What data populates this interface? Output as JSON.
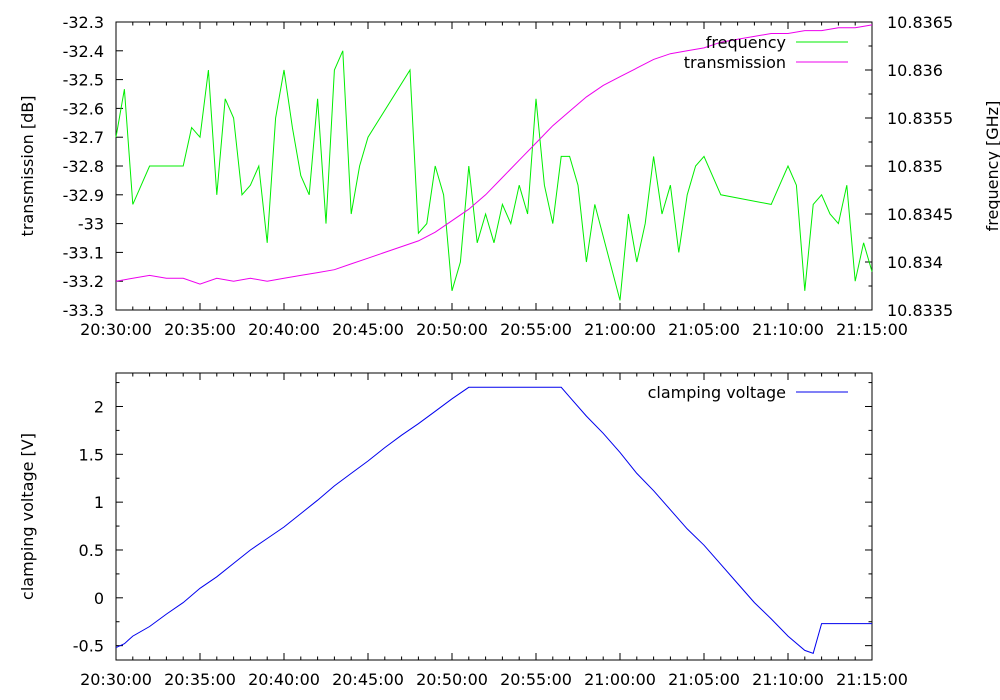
{
  "colors": {
    "frequency": "#00ee00",
    "transmission": "#ee00ee",
    "clamping_voltage": "#0000ee",
    "axes": "#000000",
    "background": "#ffffff"
  },
  "chart_data": [
    {
      "type": "line",
      "xlabel": "",
      "ylabel": "transmission [dB]",
      "y2label": "frequency [GHz]",
      "x_ticks": [
        "20:30:00",
        "20:35:00",
        "20:40:00",
        "20:45:00",
        "20:50:00",
        "20:55:00",
        "21:00:00",
        "21:05:00",
        "21:10:00",
        "21:15:00"
      ],
      "xlim": [
        "20:30:00",
        "21:15:00"
      ],
      "ylim": [
        -33.3,
        -32.3
      ],
      "y_ticks": [
        "-32.3",
        "-32.4",
        "-32.5",
        "-32.6",
        "-32.7",
        "-32.8",
        "-32.9",
        "-33",
        "-33.1",
        "-33.2",
        "-33.3"
      ],
      "y2lim": [
        10.8335,
        10.8365
      ],
      "y2_ticks": [
        "10.8365",
        "10.836",
        "10.8355",
        "10.835",
        "10.8345",
        "10.834",
        "10.8335"
      ],
      "grid": false,
      "legend_position": "top-right",
      "series": [
        {
          "name": "frequency",
          "axis": "y2",
          "x": [
            "20:30:00",
            "20:30:30",
            "20:31:00",
            "20:32:00",
            "20:33:00",
            "20:33:30",
            "20:34:00",
            "20:34:30",
            "20:35:00",
            "20:35:30",
            "20:36:00",
            "20:36:30",
            "20:37:00",
            "20:37:30",
            "20:38:00",
            "20:38:30",
            "20:39:00",
            "20:39:30",
            "20:40:00",
            "20:40:30",
            "20:41:00",
            "20:41:30",
            "20:42:00",
            "20:42:30",
            "20:43:00",
            "20:43:30",
            "20:44:00",
            "20:44:30",
            "20:45:00",
            "20:47:30",
            "20:48:00",
            "20:48:30",
            "20:49:00",
            "20:49:30",
            "20:50:00",
            "20:50:30",
            "20:51:00",
            "20:51:30",
            "20:52:00",
            "20:52:30",
            "20:53:00",
            "20:53:30",
            "20:54:00",
            "20:54:30",
            "20:55:00",
            "20:55:30",
            "20:56:00",
            "20:56:30",
            "20:57:00",
            "20:57:30",
            "20:58:00",
            "20:58:30",
            "21:00:00",
            "21:00:30",
            "21:01:00",
            "21:01:30",
            "21:02:00",
            "21:02:30",
            "21:03:00",
            "21:03:30",
            "21:04:00",
            "21:04:30",
            "21:05:00",
            "21:06:00",
            "21:09:00",
            "21:09:30",
            "21:10:00",
            "21:10:30",
            "21:11:00",
            "21:11:30",
            "21:12:00",
            "21:12:30",
            "21:13:00",
            "21:13:30",
            "21:14:00",
            "21:14:30",
            "21:15:00"
          ],
          "values": [
            10.8353,
            10.8358,
            10.8346,
            10.835,
            10.835,
            10.835,
            10.835,
            10.8354,
            10.8353,
            10.836,
            10.8347,
            10.8357,
            10.8355,
            10.8347,
            10.8348,
            10.835,
            10.8342,
            10.8355,
            10.836,
            10.8354,
            10.8349,
            10.8347,
            10.8357,
            10.8344,
            10.836,
            10.8362,
            10.8345,
            10.835,
            10.8353,
            10.836,
            10.8343,
            10.8344,
            10.835,
            10.8347,
            10.8337,
            10.834,
            10.835,
            10.8342,
            10.8345,
            10.8342,
            10.8346,
            10.8344,
            10.8348,
            10.8345,
            10.8357,
            10.8348,
            10.8344,
            10.8351,
            10.8351,
            10.8348,
            10.834,
            10.8346,
            10.8336,
            10.8345,
            10.834,
            10.8344,
            10.8351,
            10.8345,
            10.8348,
            10.8341,
            10.8347,
            10.835,
            10.8351,
            10.8347,
            10.8346,
            10.8348,
            10.835,
            10.8348,
            10.8337,
            10.8346,
            10.8347,
            10.8345,
            10.8344,
            10.8348,
            10.8338,
            10.8342,
            10.8339
          ]
        },
        {
          "name": "transmission",
          "axis": "y",
          "x": [
            "20:30:00",
            "20:31:00",
            "20:32:00",
            "20:33:00",
            "20:34:00",
            "20:35:00",
            "20:36:00",
            "20:37:00",
            "20:38:00",
            "20:39:00",
            "20:40:00",
            "20:41:00",
            "20:42:00",
            "20:43:00",
            "20:44:00",
            "20:45:00",
            "20:46:00",
            "20:47:00",
            "20:48:00",
            "20:49:00",
            "20:50:00",
            "20:51:00",
            "20:52:00",
            "20:53:00",
            "20:54:00",
            "20:55:00",
            "20:56:00",
            "20:57:00",
            "20:58:00",
            "20:59:00",
            "21:00:00",
            "21:01:00",
            "21:02:00",
            "21:03:00",
            "21:04:00",
            "21:05:00",
            "21:06:00",
            "21:07:00",
            "21:08:00",
            "21:09:00",
            "21:10:00",
            "21:11:00",
            "21:12:00",
            "21:13:00",
            "21:14:00",
            "21:15:00"
          ],
          "values": [
            -33.2,
            -33.19,
            -33.18,
            -33.19,
            -33.19,
            -33.21,
            -33.19,
            -33.2,
            -33.19,
            -33.2,
            -33.19,
            -33.18,
            -33.17,
            -33.16,
            -33.14,
            -33.12,
            -33.1,
            -33.08,
            -33.06,
            -33.03,
            -32.99,
            -32.95,
            -32.9,
            -32.84,
            -32.78,
            -32.72,
            -32.66,
            -32.61,
            -32.56,
            -32.52,
            -32.49,
            -32.46,
            -32.43,
            -32.41,
            -32.4,
            -32.39,
            -32.37,
            -32.36,
            -32.35,
            -32.34,
            -32.34,
            -32.33,
            -32.33,
            -32.32,
            -32.32,
            -32.31
          ]
        }
      ]
    },
    {
      "type": "line",
      "xlabel": "",
      "ylabel": "clamping voltage [V]",
      "x_ticks": [
        "20:30:00",
        "20:35:00",
        "20:40:00",
        "20:45:00",
        "20:50:00",
        "20:55:00",
        "21:00:00",
        "21:05:00",
        "21:10:00",
        "21:15:00"
      ],
      "xlim": [
        "20:30:00",
        "21:15:00"
      ],
      "ylim": [
        -0.65,
        2.35
      ],
      "y_ticks": [
        "2",
        "1.5",
        "1",
        "0.5",
        "0",
        "-0.5"
      ],
      "grid": false,
      "legend_position": "top-right",
      "series": [
        {
          "name": "clamping voltage",
          "x": [
            "20:30:00",
            "20:30:30",
            "20:31:00",
            "20:32:00",
            "20:33:00",
            "20:34:00",
            "20:35:00",
            "20:36:00",
            "20:37:00",
            "20:38:00",
            "20:39:00",
            "20:40:00",
            "20:41:00",
            "20:42:00",
            "20:43:00",
            "20:44:00",
            "20:45:00",
            "20:46:00",
            "20:47:00",
            "20:48:00",
            "20:49:00",
            "20:50:00",
            "20:51:00",
            "20:52:00",
            "20:53:00",
            "20:54:00",
            "20:55:00",
            "20:56:00",
            "20:56:30",
            "20:57:00",
            "20:58:00",
            "20:59:00",
            "21:00:00",
            "21:01:00",
            "21:02:00",
            "21:03:00",
            "21:04:00",
            "21:05:00",
            "21:06:00",
            "21:07:00",
            "21:08:00",
            "21:09:00",
            "21:10:00",
            "21:11:00",
            "21:11:30",
            "21:12:00",
            "21:13:00",
            "21:14:00",
            "21:15:00"
          ],
          "values": [
            -0.52,
            -0.48,
            -0.4,
            -0.3,
            -0.17,
            -0.05,
            0.1,
            0.22,
            0.36,
            0.5,
            0.62,
            0.74,
            0.88,
            1.02,
            1.17,
            1.3,
            1.43,
            1.57,
            1.7,
            1.82,
            1.95,
            2.08,
            2.2,
            2.2,
            2.2,
            2.2,
            2.2,
            2.2,
            2.2,
            2.1,
            1.9,
            1.72,
            1.52,
            1.3,
            1.12,
            0.92,
            0.72,
            0.55,
            0.35,
            0.15,
            -0.05,
            -0.22,
            -0.4,
            -0.55,
            -0.58,
            -0.27,
            -0.27,
            -0.27,
            -0.27
          ]
        }
      ]
    }
  ]
}
